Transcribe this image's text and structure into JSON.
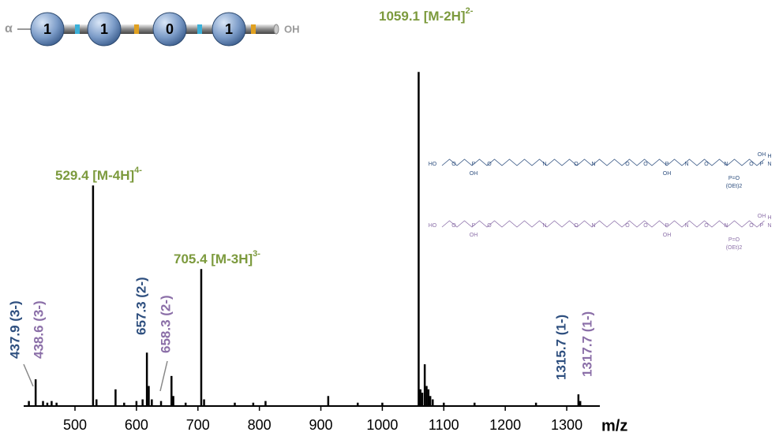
{
  "chart_data": {
    "type": "spectrum",
    "x_label": "m/z",
    "series": [
      {
        "color": "#000000",
        "x": [
          425,
          436,
          448,
          455,
          462,
          470,
          529.4,
          535,
          566,
          580,
          600,
          610,
          617,
          620,
          625,
          640,
          657,
          660,
          680,
          705.4,
          710,
          760,
          790,
          810,
          912,
          960,
          1000,
          1059.1,
          1062,
          1065,
          1069,
          1072,
          1075,
          1078,
          1082,
          1100,
          1150,
          1250,
          1319,
          1322
        ],
        "values": [
          1.5,
          8,
          1.5,
          1,
          1.5,
          1,
          66,
          2,
          5,
          1,
          1.5,
          2,
          16,
          6,
          2,
          1.5,
          9,
          3,
          1,
          41,
          2,
          1,
          1,
          1.5,
          3,
          1,
          1,
          100,
          5,
          4,
          12.5,
          6,
          5,
          3,
          2,
          1,
          1,
          1,
          3.5,
          1.5
        ]
      }
    ],
    "xlim": [
      420,
      1350
    ],
    "xticks": [
      500,
      600,
      700,
      800,
      900,
      1000,
      1100,
      1200,
      1300
    ],
    "ylim": [
      0,
      105
    ],
    "annotations": [
      {
        "text": "1059.1 [M-2H]",
        "sup": "2-",
        "color": "#7c9a3d"
      },
      {
        "text": "529.4 [M-4H]",
        "sup": "4-",
        "color": "#7c9a3d"
      },
      {
        "text": "705.4 [M-3H]",
        "sup": "3-",
        "color": "#7c9a3d"
      }
    ],
    "rotated_labels": [
      {
        "text": "437.9 (3-)",
        "color": "#2e4f7f"
      },
      {
        "text": "438.6 (3-)",
        "color": "#8b6fa8"
      },
      {
        "text": "657.3 (2-)",
        "color": "#2e4f7f"
      },
      {
        "text": "658.3 (2-)",
        "color": "#8b6fa8"
      },
      {
        "text": "1315.7 (1-)",
        "color": "#2e4f7f"
      },
      {
        "text": "1317.7 (1-)",
        "color": "#8b6fa8"
      }
    ]
  },
  "sequence": {
    "start": "α",
    "units": [
      "1",
      "1",
      "0",
      "1"
    ],
    "end": "OH"
  },
  "structures": [
    {
      "color": "#2e4f7f",
      "labels": [
        "HO",
        "O",
        "P",
        "OH",
        "O",
        "N",
        "O",
        "N",
        "O",
        "O",
        "P",
        "OH",
        "N",
        "O",
        "N",
        "P=O",
        "(OEt)2",
        "O",
        "P",
        "OH",
        "N",
        "H"
      ]
    },
    {
      "color": "#8b6fa8",
      "labels": [
        "HO",
        "O",
        "P",
        "OH",
        "O",
        "N",
        "O",
        "N",
        "O",
        "O",
        "P",
        "OH",
        "N",
        "O",
        "N",
        "P=O",
        "(OEt)2",
        "O",
        "P",
        "OH",
        "N",
        "H"
      ]
    }
  ]
}
